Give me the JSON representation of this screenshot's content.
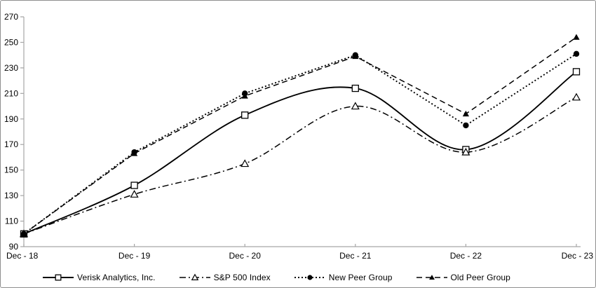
{
  "figure": {
    "description": "Cumulative total return comparison line chart"
  },
  "chart_data": {
    "type": "line",
    "title": "",
    "xlabel": "",
    "ylabel": "",
    "categories": [
      "Dec - 18",
      "Dec - 19",
      "Dec - 20",
      "Dec - 21",
      "Dec - 22",
      "Dec - 23"
    ],
    "series": [
      {
        "name": "Verisk Analytics, Inc.",
        "values": [
          100,
          138,
          193,
          214,
          166,
          227
        ],
        "line_style": "solid",
        "marker": "open-square",
        "smooth": true
      },
      {
        "name": "S&P 500 Index",
        "values": [
          100,
          131,
          155,
          200,
          164,
          207
        ],
        "line_style": "dash-dot",
        "marker": "open-triangle",
        "smooth": true
      },
      {
        "name": "New Peer Group",
        "values": [
          100,
          164,
          210,
          240,
          185,
          241
        ],
        "line_style": "dotted",
        "marker": "filled-circle",
        "smooth": false
      },
      {
        "name": "Old Peer Group",
        "values": [
          100,
          163,
          208,
          239,
          194,
          254
        ],
        "line_style": "dashed",
        "marker": "filled-triangle",
        "smooth": false
      }
    ],
    "ylim": [
      90,
      270
    ],
    "yticks": [
      90,
      110,
      130,
      150,
      170,
      190,
      210,
      230,
      250,
      270
    ],
    "grid": false,
    "legend_position": "bottom",
    "colors": {
      "line": "#000000",
      "axis": "#a6a6a6",
      "text": "#000000",
      "marker_fill_open": "#ffffff"
    }
  }
}
